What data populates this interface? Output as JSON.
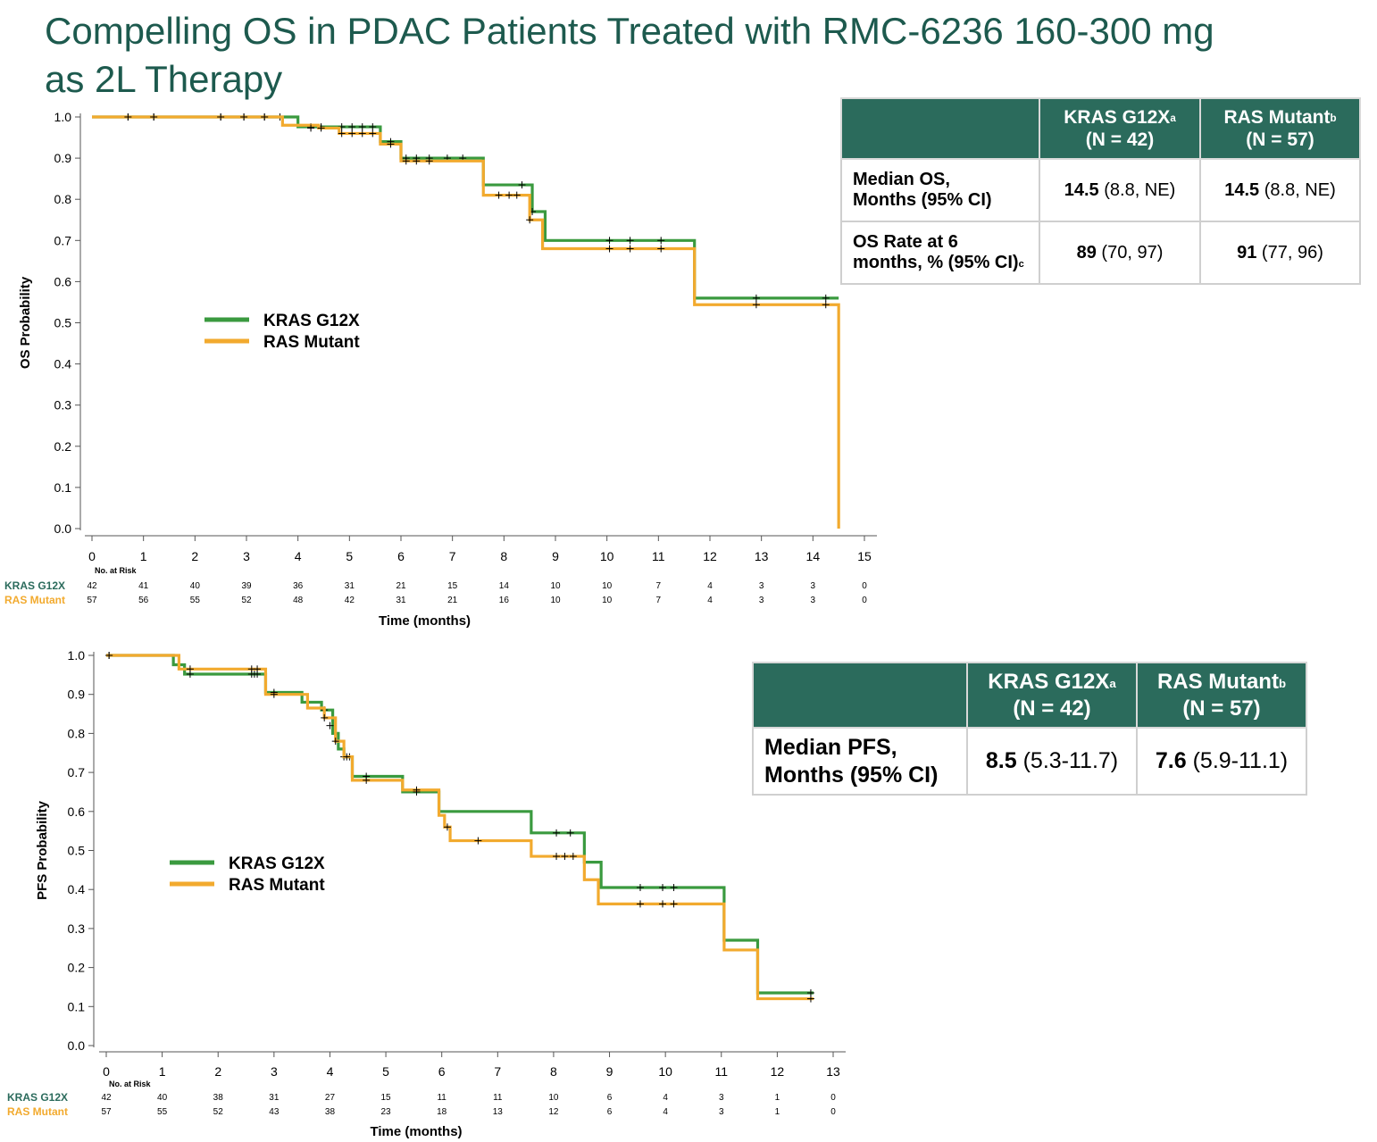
{
  "slide": {
    "title_line1": "Compelling OS in PDAC Patients Treated with RMC-6236 160-300 mg",
    "title_line2": "as 2L Therapy"
  },
  "colors": {
    "kras": "#3a9a3f",
    "ras": "#f2aa2e",
    "header_bg": "#2b6b5c",
    "title": "#1d5a4e",
    "kras_label": "#2b6b5c",
    "ras_label": "#f2aa2e"
  },
  "os_table": {
    "col1": "KRAS G12X",
    "col1_sup": "a",
    "col1_n": "(N = 42)",
    "col2": "RAS Mutant",
    "col2_sup": "b",
    "col2_n": "(N = 57)",
    "rows": [
      {
        "label_line1": "Median OS,",
        "label_line2": "Months (95% CI)",
        "label_sup": "",
        "v1": "14.5",
        "v1_ci": " (8.8, NE)",
        "v2": "14.5",
        "v2_ci": " (8.8, NE)"
      },
      {
        "label_line1": "OS Rate at 6",
        "label_line2": "months, % (95% CI)",
        "label_sup": "c",
        "v1": "89",
        "v1_ci": " (70, 97)",
        "v2": "91",
        "v2_ci": " (77, 96)"
      }
    ]
  },
  "pfs_table": {
    "col1": "KRAS G12X",
    "col1_sup": "a",
    "col1_n": "(N = 42)",
    "col2": "RAS Mutant",
    "col2_sup": "b",
    "col2_n": "(N = 57)",
    "rows": [
      {
        "label_line1": "Median PFS,",
        "label_line2": "Months (95% CI)",
        "v1": "8.5",
        "v1_ci": " (5.3-11.7)",
        "v2": "7.6",
        "v2_ci": " (5.9-11.1)"
      }
    ]
  },
  "chart_data": [
    {
      "id": "os",
      "type": "line",
      "title": "",
      "xlabel": "Time (months)",
      "ylabel": "OS Probability",
      "xlim": [
        0,
        15
      ],
      "ylim": [
        0,
        1
      ],
      "xticks": [
        0,
        1,
        2,
        3,
        4,
        5,
        6,
        7,
        8,
        9,
        10,
        11,
        12,
        13,
        14,
        15
      ],
      "yticks": [
        "0.0",
        "0.1",
        "0.2",
        "0.3",
        "0.4",
        "0.5",
        "0.6",
        "0.7",
        "0.8",
        "0.9",
        "1.0"
      ],
      "legend": [
        "KRAS G12X",
        "RAS Mutant"
      ],
      "legend_position": "center-left",
      "risk_title": "No. at Risk",
      "series": [
        {
          "name": "KRAS G12X",
          "color_key": "kras",
          "steps": [
            [
              0,
              1.0
            ],
            [
              4.0,
              0.976
            ],
            [
              5.6,
              0.94
            ],
            [
              6.0,
              0.9
            ],
            [
              7.6,
              0.835
            ],
            [
              8.55,
              0.77
            ],
            [
              8.8,
              0.7
            ],
            [
              11.7,
              0.56
            ],
            [
              14.5,
              0.56
            ]
          ],
          "censors": [
            [
              0.7,
              1.0
            ],
            [
              1.2,
              1.0
            ],
            [
              2.5,
              1.0
            ],
            [
              2.95,
              1.0
            ],
            [
              3.35,
              1.0
            ],
            [
              3.65,
              1.0
            ],
            [
              4.25,
              0.976
            ],
            [
              4.45,
              0.976
            ],
            [
              4.85,
              0.976
            ],
            [
              5.05,
              0.976
            ],
            [
              5.25,
              0.976
            ],
            [
              5.45,
              0.976
            ],
            [
              5.8,
              0.94
            ],
            [
              6.1,
              0.9
            ],
            [
              6.3,
              0.9
            ],
            [
              6.55,
              0.9
            ],
            [
              6.9,
              0.9
            ],
            [
              7.2,
              0.9
            ],
            [
              8.35,
              0.835
            ],
            [
              8.55,
              0.77
            ],
            [
              10.05,
              0.7
            ],
            [
              10.45,
              0.7
            ],
            [
              11.05,
              0.7
            ],
            [
              12.9,
              0.56
            ],
            [
              14.25,
              0.56
            ]
          ],
          "risk": [
            "42",
            "41",
            "40",
            "39",
            "36",
            "31",
            "21",
            "15",
            "14",
            "10",
            "10",
            "7",
            "4",
            "3",
            "3",
            "0"
          ]
        },
        {
          "name": "RAS Mutant",
          "color_key": "ras",
          "steps": [
            [
              0,
              1.0
            ],
            [
              3.7,
              0.98
            ],
            [
              4.4,
              0.973
            ],
            [
              4.8,
              0.96
            ],
            [
              5.6,
              0.934
            ],
            [
              6.0,
              0.893
            ],
            [
              7.6,
              0.81
            ],
            [
              8.5,
              0.75
            ],
            [
              8.75,
              0.68
            ],
            [
              11.7,
              0.544
            ],
            [
              14.5,
              0.544
            ],
            [
              14.5,
              0.0
            ]
          ],
          "censors": [
            [
              0.7,
              1.0
            ],
            [
              1.2,
              1.0
            ],
            [
              2.5,
              1.0
            ],
            [
              2.95,
              1.0
            ],
            [
              3.35,
              1.0
            ],
            [
              4.25,
              0.973
            ],
            [
              4.45,
              0.973
            ],
            [
              4.85,
              0.96
            ],
            [
              5.05,
              0.96
            ],
            [
              5.25,
              0.96
            ],
            [
              5.45,
              0.96
            ],
            [
              5.8,
              0.934
            ],
            [
              6.1,
              0.893
            ],
            [
              6.3,
              0.893
            ],
            [
              6.55,
              0.893
            ],
            [
              7.9,
              0.81
            ],
            [
              8.1,
              0.81
            ],
            [
              8.25,
              0.81
            ],
            [
              8.5,
              0.75
            ],
            [
              10.05,
              0.68
            ],
            [
              10.45,
              0.68
            ],
            [
              11.05,
              0.68
            ],
            [
              12.9,
              0.544
            ],
            [
              14.25,
              0.544
            ]
          ],
          "risk": [
            "57",
            "56",
            "55",
            "52",
            "48",
            "42",
            "31",
            "21",
            "16",
            "10",
            "10",
            "7",
            "4",
            "3",
            "3",
            "0"
          ]
        }
      ]
    },
    {
      "id": "pfs",
      "type": "line",
      "title": "",
      "xlabel": "Time (months)",
      "ylabel": "PFS Probability",
      "xlim": [
        0,
        13
      ],
      "ylim": [
        0,
        1
      ],
      "xticks": [
        0,
        1,
        2,
        3,
        4,
        5,
        6,
        7,
        8,
        9,
        10,
        11,
        12,
        13
      ],
      "yticks": [
        "0.0",
        "0.1",
        "0.2",
        "0.3",
        "0.4",
        "0.5",
        "0.6",
        "0.7",
        "0.8",
        "0.9",
        "1.0"
      ],
      "legend": [
        "KRAS G12X",
        "RAS Mutant"
      ],
      "legend_position": "center-left",
      "risk_title": "No. at Risk",
      "series": [
        {
          "name": "KRAS G12X",
          "color_key": "kras",
          "steps": [
            [
              0,
              1.0
            ],
            [
              1.2,
              0.976
            ],
            [
              1.4,
              0.952
            ],
            [
              2.8,
              0.952
            ],
            [
              2.85,
              0.905
            ],
            [
              3.5,
              0.88
            ],
            [
              3.85,
              0.86
            ],
            [
              4.05,
              0.8
            ],
            [
              4.15,
              0.76
            ],
            [
              4.25,
              0.74
            ],
            [
              4.4,
              0.69
            ],
            [
              5.3,
              0.65
            ],
            [
              5.95,
              0.6
            ],
            [
              7.6,
              0.545
            ],
            [
              8.55,
              0.47
            ],
            [
              8.85,
              0.405
            ],
            [
              11.05,
              0.27
            ],
            [
              11.65,
              0.135
            ],
            [
              12.65,
              0.135
            ]
          ],
          "censors": [
            [
              0.05,
              1.0
            ],
            [
              1.5,
              0.952
            ],
            [
              2.6,
              0.952
            ],
            [
              2.65,
              0.952
            ],
            [
              2.7,
              0.952
            ],
            [
              3.0,
              0.905
            ],
            [
              3.9,
              0.86
            ],
            [
              4.25,
              0.74
            ],
            [
              4.35,
              0.74
            ],
            [
              4.65,
              0.69
            ],
            [
              5.55,
              0.65
            ],
            [
              8.05,
              0.545
            ],
            [
              8.3,
              0.545
            ],
            [
              9.55,
              0.405
            ],
            [
              9.95,
              0.405
            ],
            [
              10.15,
              0.405
            ],
            [
              12.6,
              0.135
            ]
          ],
          "risk": [
            "42",
            "40",
            "38",
            "31",
            "27",
            "15",
            "11",
            "11",
            "10",
            "6",
            "4",
            "3",
            "1",
            "0"
          ]
        },
        {
          "name": "RAS Mutant",
          "color_key": "ras",
          "steps": [
            [
              0,
              1.0
            ],
            [
              1.3,
              0.965
            ],
            [
              2.85,
              0.9
            ],
            [
              3.6,
              0.865
            ],
            [
              3.9,
              0.84
            ],
            [
              4.1,
              0.78
            ],
            [
              4.25,
              0.74
            ],
            [
              4.4,
              0.68
            ],
            [
              5.3,
              0.655
            ],
            [
              5.95,
              0.59
            ],
            [
              6.05,
              0.56
            ],
            [
              6.15,
              0.525
            ],
            [
              7.6,
              0.485
            ],
            [
              8.55,
              0.425
            ],
            [
              8.8,
              0.363
            ],
            [
              11.05,
              0.245
            ],
            [
              11.65,
              0.12
            ],
            [
              12.65,
              0.12
            ]
          ],
          "censors": [
            [
              0.05,
              1.0
            ],
            [
              1.5,
              0.965
            ],
            [
              2.6,
              0.965
            ],
            [
              2.7,
              0.965
            ],
            [
              3.0,
              0.9
            ],
            [
              3.9,
              0.84
            ],
            [
              4.0,
              0.82
            ],
            [
              4.1,
              0.78
            ],
            [
              4.3,
              0.74
            ],
            [
              4.65,
              0.68
            ],
            [
              5.55,
              0.655
            ],
            [
              6.1,
              0.56
            ],
            [
              6.65,
              0.525
            ],
            [
              8.05,
              0.485
            ],
            [
              8.2,
              0.485
            ],
            [
              8.35,
              0.485
            ],
            [
              9.55,
              0.363
            ],
            [
              9.95,
              0.363
            ],
            [
              10.15,
              0.363
            ],
            [
              12.6,
              0.12
            ]
          ],
          "risk": [
            "57",
            "55",
            "52",
            "43",
            "38",
            "23",
            "18",
            "13",
            "12",
            "6",
            "4",
            "3",
            "1",
            "0"
          ]
        }
      ]
    }
  ]
}
